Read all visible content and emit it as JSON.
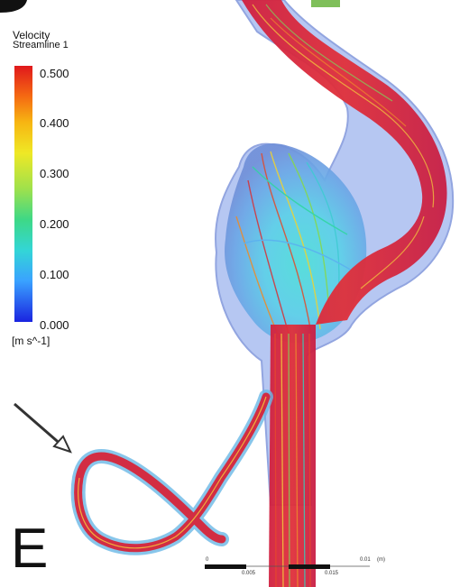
{
  "legend": {
    "title": "Velocity",
    "subtitle": "Streamline 1",
    "ticks": [
      "0.500",
      "0.400",
      "0.300",
      "0.200",
      "0.100",
      "0.000"
    ],
    "units": "[m s^-1]",
    "colors": [
      "#e0181c",
      "#f56a12",
      "#f7b512",
      "#efe825",
      "#9fe14c",
      "#3ed886",
      "#33d6d6",
      "#3aa2ff",
      "#1a24e0"
    ]
  },
  "figure": {
    "panel_letter": "E",
    "arrow": "pointer-arrow",
    "scale_bar": {
      "labels": [
        "0",
        "0.01",
        "0.005",
        "0.015"
      ],
      "unit": "(m)"
    }
  }
}
